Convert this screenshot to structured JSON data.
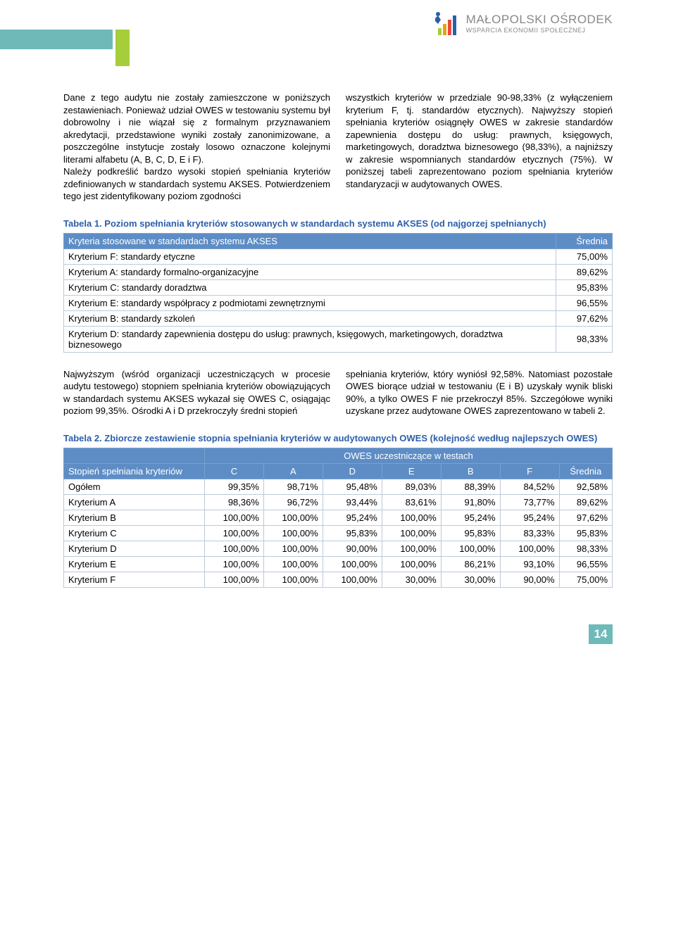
{
  "logo": {
    "main": "MAŁOPOLSKI OŚRODEK",
    "sub": "WSPARCIA EKONOMII SPOŁECZNEJ"
  },
  "para_left": "Dane z tego audytu nie zostały zamieszczone w poniższych zestawieniach. Ponieważ udział OWES w testowaniu systemu był dobrowolny i nie wiązał się z formalnym przyznawaniem akredytacji, przedstawione wyniki zostały zanonimizowane, a poszczególne instytucje zostały losowo oznaczone kolejnymi literami alfabetu (A, B, C, D, E i F).\nNależy podkreślić bardzo wysoki stopień spełniania kryteriów zdefiniowanych w standardach systemu AKSES. Potwierdzeniem tego jest zidentyfikowany poziom zgodności",
  "para_right": "wszystkich kryteriów w przedziale 90-98,33% (z wyłączeniem kryterium F, tj. standardów etycznych). Najwyższy stopień spełniania kryteriów osiągnęły OWES w zakresie standardów zapewnienia dostępu do usług: prawnych, księgowych, marketingowych, doradztwa biznesowego (98,33%), a najniższy w zakresie wspomnianych standardów etycznych (75%). W poniższej tabeli zaprezentowano poziom spełniania kryteriów standaryzacji w audytowanych OWES.",
  "table1": {
    "title": "Tabela 1. Poziom spełniania kryteriów stosowanych w standardach systemu AKSES (od najgorzej spełnianych)",
    "header_left": "Kryteria stosowane w standardach systemu AKSES",
    "header_right": "Średnia",
    "rows": [
      {
        "label": "Kryterium F: standardy etyczne",
        "value": "75,00%"
      },
      {
        "label": "Kryterium A: standardy formalno-organizacyjne",
        "value": "89,62%"
      },
      {
        "label": "Kryterium C: standardy doradztwa",
        "value": "95,83%"
      },
      {
        "label": "Kryterium E: standardy współpracy z podmiotami zewnętrznymi",
        "value": "96,55%"
      },
      {
        "label": "Kryterium B: standardy szkoleń",
        "value": "97,62%"
      },
      {
        "label": "Kryterium D: standardy zapewnienia dostępu do usług: prawnych, księgowych, marketingowych, doradztwa biznesowego",
        "value": "98,33%"
      }
    ]
  },
  "para2_left": "Najwyższym (wśród organizacji uczestniczących w procesie audytu testowego) stopniem spełniania kryteriów obowiązujących w standardach systemu AKSES wykazał się OWES C, osiągając poziom 99,35%. Ośrodki A i D przekroczyły średni stopień",
  "para2_right": "spełniania kryteriów, który wyniósł 92,58%. Natomiast pozostałe OWES biorące udział w testowaniu (E i B) uzyskały wynik bliski 90%, a tylko OWES F nie przekroczył 85%. Szczegółowe wyniki uzyskane przez audytowane OWES zaprezentowano w tabeli 2.",
  "table2": {
    "title": "Tabela 2. Zbiorcze zestawienie stopnia spełniania kryteriów w audytowanych OWES (kolejność według najlepszych OWES)",
    "spanning_header": "OWES uczestniczące w testach",
    "row_header": "Stopień spełniania kryteriów",
    "columns": [
      "C",
      "A",
      "D",
      "E",
      "B",
      "F",
      "Średnia"
    ],
    "rows": [
      {
        "label": "Ogółem",
        "values": [
          "99,35%",
          "98,71%",
          "95,48%",
          "89,03%",
          "88,39%",
          "84,52%",
          "92,58%"
        ]
      },
      {
        "label": "Kryterium A",
        "values": [
          "98,36%",
          "96,72%",
          "93,44%",
          "83,61%",
          "91,80%",
          "73,77%",
          "89,62%"
        ]
      },
      {
        "label": "Kryterium B",
        "values": [
          "100,00%",
          "100,00%",
          "95,24%",
          "100,00%",
          "95,24%",
          "95,24%",
          "97,62%"
        ]
      },
      {
        "label": "Kryterium C",
        "values": [
          "100,00%",
          "100,00%",
          "95,83%",
          "100,00%",
          "95,83%",
          "83,33%",
          "95,83%"
        ]
      },
      {
        "label": "Kryterium D",
        "values": [
          "100,00%",
          "100,00%",
          "90,00%",
          "100,00%",
          "100,00%",
          "100,00%",
          "98,33%"
        ]
      },
      {
        "label": "Kryterium E",
        "values": [
          "100,00%",
          "100,00%",
          "100,00%",
          "100,00%",
          "86,21%",
          "93,10%",
          "96,55%"
        ]
      },
      {
        "label": "Kryterium F",
        "values": [
          "100,00%",
          "100,00%",
          "100,00%",
          "30,00%",
          "30,00%",
          "90,00%",
          "75,00%"
        ]
      }
    ]
  },
  "page_number": "14",
  "colors": {
    "teal": "#6fb9b9",
    "green": "#a5ce3a",
    "blue_header": "#5e8dc6",
    "title_blue": "#2c5faa",
    "border": "#bcc9db"
  }
}
